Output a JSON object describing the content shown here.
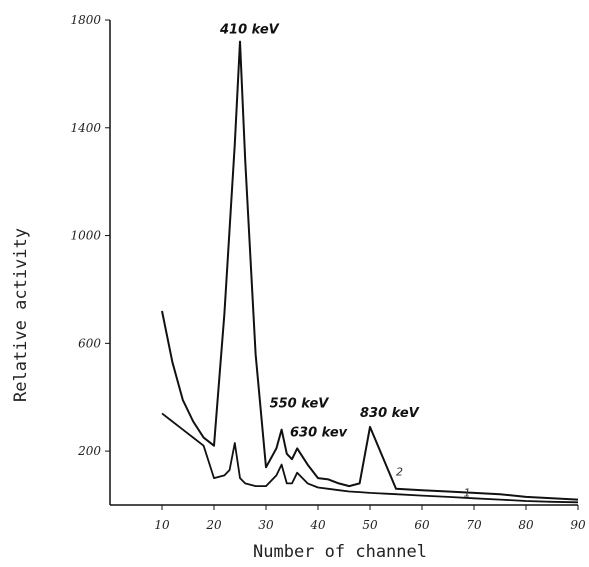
{
  "chart_data": {
    "type": "line",
    "title": "",
    "xlabel": "Number of channel",
    "ylabel": "Relative activity",
    "xlim": [
      0,
      90
    ],
    "ylim": [
      0,
      1800
    ],
    "x_ticks": [
      "10",
      "20",
      "30",
      "40",
      "50",
      "60",
      "70",
      "80",
      "90"
    ],
    "y_ticks": [
      "200",
      "600",
      "1000",
      "1400",
      "1800"
    ],
    "grid": false,
    "series": [
      {
        "name": "1",
        "x": [
          10,
          12,
          14,
          16,
          18,
          20,
          22,
          24,
          25,
          26,
          28,
          30,
          32,
          33,
          34,
          35,
          36,
          38,
          40,
          42,
          44,
          46,
          48,
          50,
          55,
          60,
          65,
          70,
          75,
          80,
          85,
          90
        ],
        "y": [
          720,
          530,
          390,
          310,
          250,
          220,
          710,
          1340,
          1720,
          1280,
          560,
          140,
          210,
          280,
          190,
          170,
          210,
          150,
          100,
          95,
          80,
          70,
          80,
          290,
          60,
          55,
          50,
          45,
          40,
          30,
          25,
          20
        ]
      },
      {
        "name": "2",
        "x": [
          10,
          12,
          14,
          16,
          18,
          20,
          22,
          23,
          24,
          25,
          26,
          28,
          30,
          32,
          33,
          34,
          35,
          36,
          38,
          40,
          42,
          44,
          46,
          48,
          50,
          55,
          60,
          65,
          70,
          75,
          80,
          85,
          90
        ],
        "y": [
          340,
          310,
          280,
          250,
          220,
          100,
          110,
          130,
          230,
          100,
          80,
          70,
          70,
          110,
          150,
          80,
          80,
          120,
          80,
          65,
          60,
          55,
          50,
          48,
          45,
          40,
          35,
          30,
          25,
          20,
          15,
          12,
          10
        ]
      }
    ],
    "curve_labels": [
      "1",
      "2"
    ],
    "annotations": [
      {
        "text": "410 keV",
        "x": 25,
        "y": 1720
      },
      {
        "text": "550 keV",
        "x": 33,
        "y": 280
      },
      {
        "text": "630 kev",
        "x": 35,
        "y": 210
      },
      {
        "text": "830 keV",
        "x": 50,
        "y": 290
      }
    ]
  }
}
